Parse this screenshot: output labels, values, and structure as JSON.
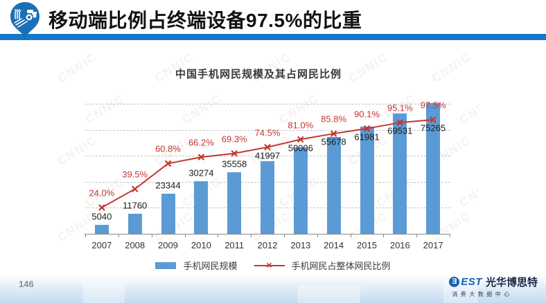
{
  "header": {
    "title": "移动端比例占终端设备97.5%的比重",
    "accent_color": "#1478CC",
    "logo_name": "blue-pin-agriculture-logo"
  },
  "chart_data": {
    "type": "combo-bar-line",
    "title": "中国手机网民规模及其占网民比例",
    "categories": [
      "2007",
      "2008",
      "2009",
      "2010",
      "2011",
      "2012",
      "2013",
      "2014",
      "2015",
      "2016",
      "2017"
    ],
    "series": [
      {
        "name": "手机网民规模",
        "type": "bar",
        "color": "#5B9BD5",
        "values": [
          5040,
          11760,
          23344,
          30274,
          35558,
          41997,
          50006,
          55678,
          61981,
          69531,
          75265
        ]
      },
      {
        "name": "手机网民占整体网民比例",
        "type": "line",
        "color": "#C4362E",
        "marker": "x",
        "values": [
          24.0,
          39.5,
          60.8,
          66.2,
          69.3,
          74.5,
          81.0,
          85.8,
          90.1,
          95.1,
          97.5
        ],
        "labels": [
          "24.0%",
          "39.5%",
          "60.8%",
          "66.2%",
          "69.3%",
          "74.5%",
          "81.0%",
          "85.8%",
          "90.1%",
          "95.1%",
          "97.5%"
        ]
      }
    ],
    "value_axis": {
      "min": 0,
      "max": 75000,
      "gridline_interval": 15000,
      "grid_style": "dashed",
      "tick_labels_visible": false
    },
    "percent_axis": {
      "min": 0,
      "implied_max": 120,
      "tick_labels_visible": false
    },
    "legend_position": "bottom",
    "watermark": "CNNIC"
  },
  "footer": {
    "page_number": "146",
    "brand": {
      "icon_glyph": "Ǝ",
      "wordmark": "EST",
      "name": "光华博思特",
      "subtitle": "消费大数据中心"
    }
  }
}
